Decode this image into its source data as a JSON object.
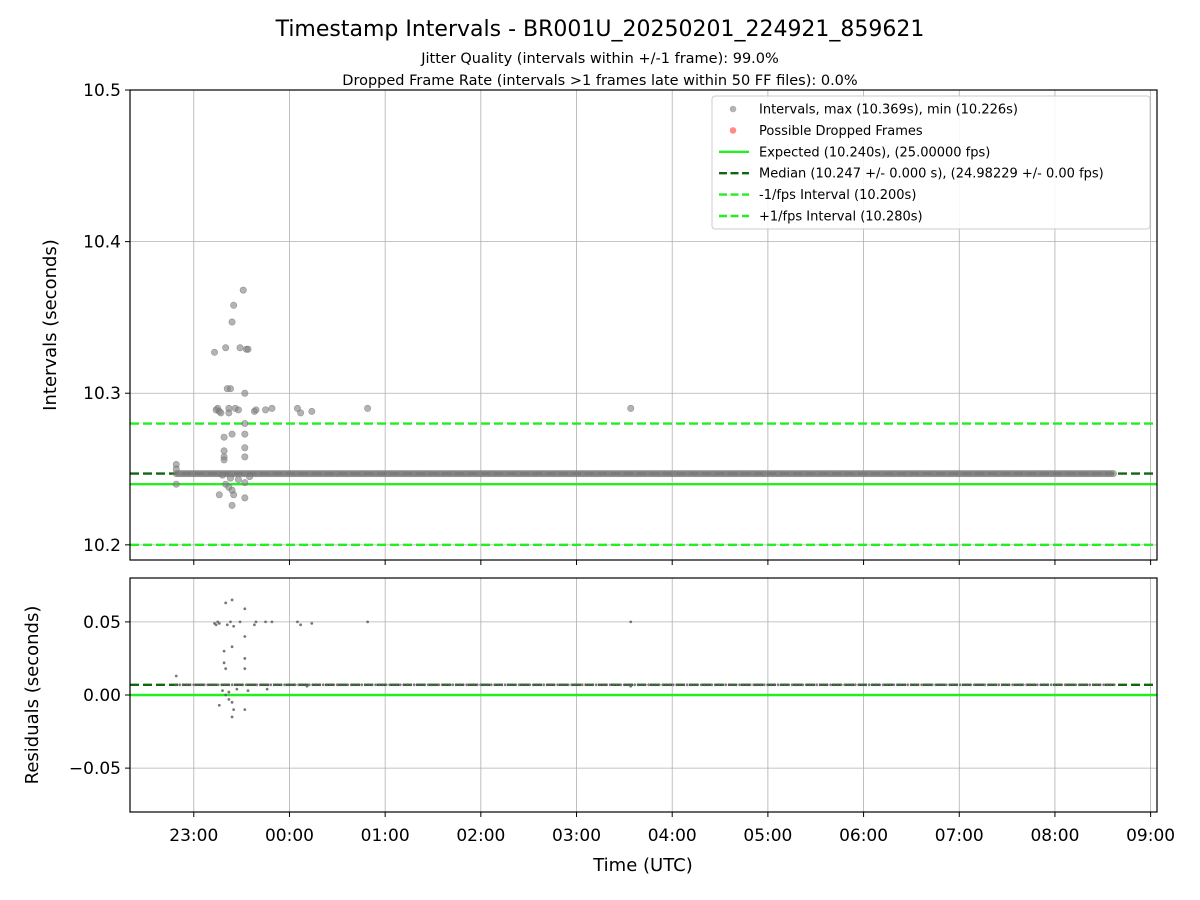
{
  "figure": {
    "title": "Timestamp Intervals - BR001U_20250201_224921_859621",
    "subtitle_1": "Jitter Quality (intervals within +/-1 frame): 99.0%",
    "subtitle_2": "Dropped Frame Rate (intervals >1 frames late within 50 FF files): 0.0%"
  },
  "chart_data": [
    {
      "type": "scatter",
      "panel": "intervals",
      "ylabel": "Intervals (seconds)",
      "xlabel": "",
      "ylim": [
        10.19,
        10.5
      ],
      "xlim": [
        "22:20",
        "09:04"
      ],
      "yticks": [
        10.2,
        10.3,
        10.4,
        10.5
      ],
      "ytick_labels": [
        "10.2",
        "10.3",
        "10.4",
        "10.5"
      ],
      "xticks": [
        "23:00",
        "00:00",
        "01:00",
        "02:00",
        "03:00",
        "04:00",
        "05:00",
        "06:00",
        "07:00",
        "08:00",
        "09:00"
      ],
      "grid": true,
      "legend_position": "top-right",
      "legend": [
        {
          "label": "Intervals, max (10.369s), min (10.226s)",
          "kind": "marker",
          "color": "#808080"
        },
        {
          "label": "Possible Dropped Frames",
          "kind": "marker",
          "color": "#ff4040"
        },
        {
          "label": "Expected (10.240s), (25.00000 fps)",
          "kind": "solid",
          "color": "#22ee22"
        },
        {
          "label": "Median (10.247 +/- 0.000 s), (24.98229 +/- 0.00 fps)",
          "kind": "dashed",
          "color": "#116611"
        },
        {
          "label": "-1/fps Interval (10.200s)",
          "kind": "dashed",
          "color": "#22ee22"
        },
        {
          "label": "+1/fps Interval (10.280s)",
          "kind": "dashed",
          "color": "#22ee22"
        }
      ],
      "lines": [
        {
          "name": "Expected (10.240s), (25.00000 fps)",
          "y": 10.24,
          "style": "solid",
          "color": "#22ee22"
        },
        {
          "name": "Median (10.247 +/- 0.000 s), (24.98229 +/- 0.00 fps)",
          "y": 10.247,
          "style": "dashed",
          "color": "#116611"
        },
        {
          "name": "-1/fps Interval (10.200s)",
          "y": 10.2,
          "style": "dashed",
          "color": "#22ee22"
        },
        {
          "name": "+1/fps Interval (10.280s)",
          "y": 10.28,
          "style": "dashed",
          "color": "#22ee22"
        }
      ],
      "series": [
        {
          "name": "Intervals, max (10.369s), min (10.226s)",
          "color": "#808080",
          "dense_band": {
            "y": 10.247,
            "x_start": "22:49",
            "x_end": "08:38"
          },
          "points": [
            [
              "22:49",
              10.253
            ],
            [
              "22:49",
              10.24
            ],
            [
              "22:49",
              10.25
            ],
            [
              "23:13",
              10.327
            ],
            [
              "23:14",
              10.289
            ],
            [
              "23:15",
              10.29
            ],
            [
              "23:16",
              10.288
            ],
            [
              "23:17",
              10.287
            ],
            [
              "23:19",
              10.271
            ],
            [
              "23:19",
              10.262
            ],
            [
              "23:19",
              10.258
            ],
            [
              "23:19",
              10.256
            ],
            [
              "23:20",
              10.33
            ],
            [
              "23:21",
              10.303
            ],
            [
              "23:22",
              10.29
            ],
            [
              "23:22",
              10.287
            ],
            [
              "23:23",
              10.303
            ],
            [
              "23:24",
              10.347
            ],
            [
              "23:25",
              10.358
            ],
            [
              "23:26",
              10.29
            ],
            [
              "23:24",
              10.273
            ],
            [
              "23:28",
              10.289
            ],
            [
              "23:29",
              10.33
            ],
            [
              "23:31",
              10.368
            ],
            [
              "23:32",
              10.3
            ],
            [
              "23:33",
              10.329
            ],
            [
              "23:34",
              10.329
            ],
            [
              "23:32",
              10.28
            ],
            [
              "23:32",
              10.273
            ],
            [
              "23:32",
              10.264
            ],
            [
              "23:32",
              10.258
            ],
            [
              "23:38",
              10.288
            ],
            [
              "23:39",
              10.289
            ],
            [
              "23:45",
              10.289
            ],
            [
              "23:49",
              10.29
            ],
            [
              "00:05",
              10.29
            ],
            [
              "00:07",
              10.287
            ],
            [
              "00:14",
              10.288
            ],
            [
              "00:49",
              10.29
            ],
            [
              "03:34",
              10.29
            ],
            [
              "23:16",
              10.233
            ],
            [
              "23:20",
              10.24
            ],
            [
              "23:22",
              10.238
            ],
            [
              "23:24",
              10.236
            ],
            [
              "23:24",
              10.226
            ],
            [
              "23:25",
              10.233
            ],
            [
              "23:32",
              10.231
            ],
            [
              "23:32",
              10.241
            ],
            [
              "23:18",
              10.246
            ],
            [
              "23:23",
              10.244
            ],
            [
              "23:28",
              10.243
            ],
            [
              "23:35",
              10.245
            ]
          ]
        }
      ]
    },
    {
      "type": "scatter",
      "panel": "residuals",
      "ylabel": "Residuals (seconds)",
      "xlabel": "Time (UTC)",
      "ylim": [
        -0.08,
        0.08
      ],
      "xlim": [
        "22:20",
        "09:04"
      ],
      "yticks": [
        -0.05,
        0.0,
        0.05
      ],
      "ytick_labels": [
        "−0.05",
        "0.00",
        "0.05"
      ],
      "xticks": [
        "23:00",
        "00:00",
        "01:00",
        "02:00",
        "03:00",
        "04:00",
        "05:00",
        "06:00",
        "07:00",
        "08:00",
        "09:00"
      ],
      "grid": true,
      "lines": [
        {
          "name": "Expected",
          "y": 0.0,
          "style": "solid",
          "color": "#22ee22"
        },
        {
          "name": "Median",
          "y": 0.007,
          "style": "dashed",
          "color": "#116611"
        }
      ],
      "series": [
        {
          "name": "Residuals",
          "color": "#606060",
          "dense_band": {
            "y": 0.007,
            "x_start": "22:49",
            "x_end": "08:38"
          },
          "points": [
            [
              "22:49",
              0.013
            ],
            [
              "23:13",
              0.049
            ],
            [
              "23:14",
              0.048
            ],
            [
              "23:15",
              0.05
            ],
            [
              "23:16",
              0.049
            ],
            [
              "23:20",
              0.063
            ],
            [
              "23:21",
              0.048
            ],
            [
              "23:23",
              0.05
            ],
            [
              "23:24",
              0.065
            ],
            [
              "23:25",
              0.047
            ],
            [
              "23:29",
              0.05
            ],
            [
              "23:32",
              0.059
            ],
            [
              "23:38",
              0.048
            ],
            [
              "23:39",
              0.05
            ],
            [
              "23:45",
              0.05
            ],
            [
              "23:49",
              0.05
            ],
            [
              "00:05",
              0.05
            ],
            [
              "00:07",
              0.048
            ],
            [
              "00:14",
              0.049
            ],
            [
              "00:49",
              0.05
            ],
            [
              "03:34",
              0.05
            ],
            [
              "23:19",
              0.03
            ],
            [
              "23:19",
              0.022
            ],
            [
              "23:20",
              0.018
            ],
            [
              "23:24",
              0.033
            ],
            [
              "23:32",
              0.04
            ],
            [
              "23:32",
              0.025
            ],
            [
              "23:32",
              0.018
            ],
            [
              "23:16",
              -0.007
            ],
            [
              "23:20",
              0.0
            ],
            [
              "23:22",
              -0.003
            ],
            [
              "23:24",
              -0.005
            ],
            [
              "23:24",
              -0.015
            ],
            [
              "23:25",
              -0.01
            ],
            [
              "23:32",
              -0.01
            ],
            [
              "23:18",
              0.003
            ],
            [
              "23:22",
              0.002
            ],
            [
              "23:27",
              0.004
            ],
            [
              "23:34",
              0.003
            ],
            [
              "23:46",
              0.004
            ],
            [
              "00:11",
              0.006
            ],
            [
              "03:34",
              0.006
            ]
          ]
        }
      ]
    }
  ]
}
